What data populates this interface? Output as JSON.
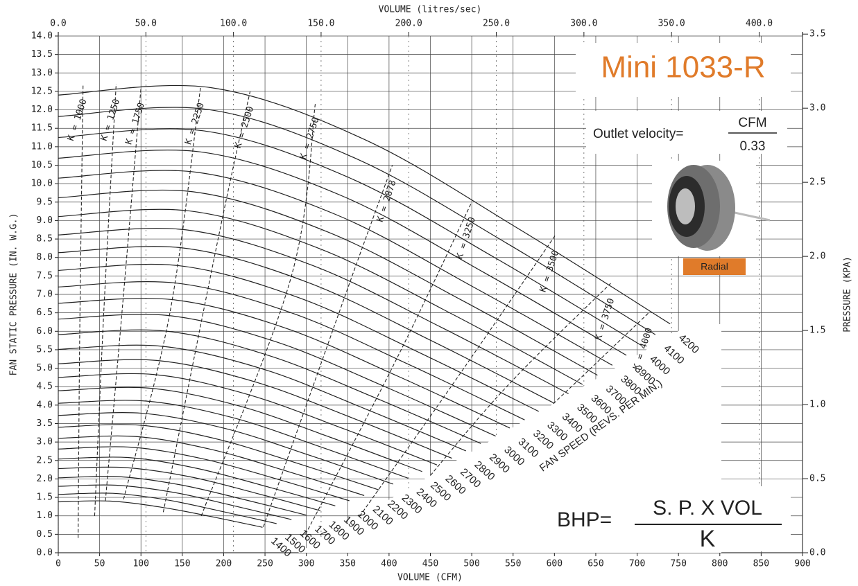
{
  "chart_data": {
    "type": "line",
    "title": "Mini 1033-R",
    "title_color": "#e07b2a",
    "xlabel": "VOLUME (CFM)",
    "x2label": "VOLUME (litres/sec)",
    "ylabel": "FAN STATIC PRESSURE (IN. W.G.)",
    "y2label": "PRESSURE (KPA)",
    "speed_label": "FAN SPEED (REVS. PER MIN.)",
    "line_color": "#222222",
    "grid": true,
    "xlim": [
      0,
      900
    ],
    "xticks": [
      0,
      50,
      100,
      150,
      200,
      250,
      300,
      350,
      400,
      450,
      500,
      550,
      600,
      650,
      700,
      750,
      800,
      850,
      900
    ],
    "x2lim": [
      0,
      424.75
    ],
    "x2ticks": [
      {
        "value": 0,
        "label": "0.0"
      },
      {
        "value": 50,
        "label": "50.0"
      },
      {
        "value": 100,
        "label": "100.0"
      },
      {
        "value": 150,
        "label": "150.0"
      },
      {
        "value": 200,
        "label": "200.0"
      },
      {
        "value": 250,
        "label": "250.0"
      },
      {
        "value": 300,
        "label": "300.0"
      },
      {
        "value": 350,
        "label": "350.0"
      },
      {
        "value": 400,
        "label": "400.0"
      }
    ],
    "ylim": [
      0,
      14
    ],
    "yticks": [
      {
        "value": 0,
        "label": "0.0"
      },
      {
        "value": 0.5,
        "label": "0.5"
      },
      {
        "value": 1,
        "label": "1.0"
      },
      {
        "value": 1.5,
        "label": "1.5"
      },
      {
        "value": 2,
        "label": "2.0"
      },
      {
        "value": 2.5,
        "label": "2.5"
      },
      {
        "value": 3,
        "label": "3.0"
      },
      {
        "value": 3.5,
        "label": "3.5"
      },
      {
        "value": 4,
        "label": "4.0"
      },
      {
        "value": 4.5,
        "label": "4.5"
      },
      {
        "value": 5,
        "label": "5.0"
      },
      {
        "value": 5.5,
        "label": "5.5"
      },
      {
        "value": 6,
        "label": "6.0"
      },
      {
        "value": 6.5,
        "label": "6.5"
      },
      {
        "value": 7,
        "label": "7.0"
      },
      {
        "value": 7.5,
        "label": "7.5"
      },
      {
        "value": 8,
        "label": "8.0"
      },
      {
        "value": 8.5,
        "label": "8.5"
      },
      {
        "value": 9,
        "label": "9.0"
      },
      {
        "value": 9.5,
        "label": "9.5"
      },
      {
        "value": 10,
        "label": "10.0"
      },
      {
        "value": 10.5,
        "label": "10.5"
      },
      {
        "value": 11,
        "label": "11.0"
      },
      {
        "value": 11.5,
        "label": "11.5"
      },
      {
        "value": 12,
        "label": "12.0"
      },
      {
        "value": 12.5,
        "label": "12.5"
      },
      {
        "value": 13,
        "label": "13.0"
      },
      {
        "value": 13.5,
        "label": "13.5"
      },
      {
        "value": 14,
        "label": "14.0"
      }
    ],
    "y2lim": [
      0,
      3.487
    ],
    "y2ticks": [
      {
        "value": 0,
        "label": "0.0"
      },
      {
        "value": 0.5,
        "label": "0.5"
      },
      {
        "value": 1,
        "label": "1.0"
      },
      {
        "value": 1.5,
        "label": "1.5"
      },
      {
        "value": 2,
        "label": "2.0"
      },
      {
        "value": 2.5,
        "label": "2.5"
      },
      {
        "value": 3,
        "label": "3.0"
      },
      {
        "value": 3.5,
        "label": "3.5"
      }
    ],
    "series": [
      {
        "name": "1400",
        "x": [
          0,
          62,
          123,
          185,
          247
        ],
        "values": [
          1.38,
          1.4,
          1.24,
          0.98,
          0.69
        ]
      },
      {
        "name": "1500",
        "x": [
          0,
          66,
          132,
          198,
          264
        ],
        "values": [
          1.58,
          1.61,
          1.43,
          1.12,
          0.79
        ]
      },
      {
        "name": "1600",
        "x": [
          0,
          70,
          141,
          211,
          282
        ],
        "values": [
          1.8,
          1.83,
          1.63,
          1.28,
          0.9
        ]
      },
      {
        "name": "1700",
        "x": [
          0,
          75,
          150,
          225,
          300
        ],
        "values": [
          2.03,
          2.06,
          1.83,
          1.44,
          1.02
        ]
      },
      {
        "name": "1800",
        "x": [
          0,
          79,
          159,
          238,
          317
        ],
        "values": [
          2.28,
          2.31,
          2.06,
          1.62,
          1.14
        ]
      },
      {
        "name": "1900",
        "x": [
          0,
          84,
          167,
          251,
          335
        ],
        "values": [
          2.54,
          2.58,
          2.29,
          1.8,
          1.27
        ]
      },
      {
        "name": "2000",
        "x": [
          0,
          88,
          176,
          264,
          352
        ],
        "values": [
          2.81,
          2.86,
          2.54,
          2.0,
          1.41
        ]
      },
      {
        "name": "2100",
        "x": [
          0,
          93,
          185,
          278,
          370
        ],
        "values": [
          3.1,
          3.15,
          2.8,
          2.2,
          1.55
        ]
      },
      {
        "name": "2200",
        "x": [
          0,
          97,
          194,
          291,
          388
        ],
        "values": [
          3.4,
          3.46,
          3.07,
          2.41,
          1.7
        ]
      },
      {
        "name": "2300",
        "x": [
          0,
          101,
          203,
          304,
          405
        ],
        "values": [
          3.72,
          3.78,
          3.36,
          2.64,
          1.86
        ]
      },
      {
        "name": "2400",
        "x": [
          0,
          106,
          211,
          317,
          423
        ],
        "values": [
          4.05,
          4.11,
          3.66,
          2.87,
          2.02
        ]
      },
      {
        "name": "2500",
        "x": [
          0,
          110,
          220,
          330,
          440
        ],
        "values": [
          4.39,
          4.46,
          3.97,
          3.12,
          2.2
        ]
      },
      {
        "name": "2600",
        "x": [
          0,
          115,
          229,
          344,
          458
        ],
        "values": [
          4.75,
          4.83,
          4.29,
          3.37,
          2.38
        ]
      },
      {
        "name": "2700",
        "x": [
          0,
          119,
          238,
          357,
          476
        ],
        "values": [
          5.12,
          5.21,
          4.63,
          3.64,
          2.56
        ]
      },
      {
        "name": "2800",
        "x": [
          0,
          123,
          247,
          370,
          493
        ],
        "values": [
          5.51,
          5.6,
          4.98,
          3.91,
          2.76
        ]
      },
      {
        "name": "2900",
        "x": [
          0,
          128,
          255,
          383,
          511
        ],
        "values": [
          5.91,
          6.01,
          5.34,
          4.2,
          2.96
        ]
      },
      {
        "name": "3000",
        "x": [
          0,
          132,
          264,
          396,
          529
        ],
        "values": [
          6.33,
          6.43,
          5.71,
          4.49,
          3.16
        ]
      },
      {
        "name": "3100",
        "x": [
          0,
          137,
          273,
          410,
          546
        ],
        "values": [
          6.76,
          6.86,
          6.1,
          4.79,
          3.38
        ]
      },
      {
        "name": "3200",
        "x": [
          0,
          141,
          282,
          423,
          564
        ],
        "values": [
          7.2,
          7.31,
          6.5,
          5.11,
          3.6
        ]
      },
      {
        "name": "3300",
        "x": [
          0,
          145,
          291,
          436,
          581
        ],
        "values": [
          7.65,
          7.78,
          6.91,
          5.43,
          3.83
        ]
      },
      {
        "name": "3400",
        "x": [
          0,
          150,
          300,
          449,
          599
        ],
        "values": [
          8.13,
          8.26,
          7.34,
          5.77,
          4.06
        ]
      },
      {
        "name": "3500",
        "x": [
          0,
          154,
          308,
          463,
          617
        ],
        "values": [
          8.61,
          8.75,
          7.78,
          6.11,
          4.31
        ]
      },
      {
        "name": "3600",
        "x": [
          0,
          159,
          317,
          476,
          634
        ],
        "values": [
          9.11,
          9.26,
          8.23,
          6.47,
          4.56
        ]
      },
      {
        "name": "3700",
        "x": [
          0,
          163,
          326,
          489,
          652
        ],
        "values": [
          9.62,
          9.78,
          8.69,
          6.83,
          4.81
        ]
      },
      {
        "name": "3800",
        "x": [
          0,
          167,
          335,
          502,
          670
        ],
        "values": [
          10.15,
          10.31,
          9.17,
          7.2,
          5.08
        ]
      },
      {
        "name": "3900",
        "x": [
          0,
          172,
          344,
          515,
          687
        ],
        "values": [
          10.69,
          10.86,
          9.66,
          7.59,
          5.35
        ]
      },
      {
        "name": "4000",
        "x": [
          0,
          176,
          352,
          529,
          705
        ],
        "values": [
          11.25,
          11.43,
          10.16,
          7.98,
          5.62
        ]
      },
      {
        "name": "4100",
        "x": [
          0,
          181,
          361,
          542,
          722
        ],
        "values": [
          11.82,
          12.01,
          10.67,
          8.39,
          5.91
        ]
      },
      {
        "name": "4200",
        "x": [
          0,
          185,
          370,
          555,
          740
        ],
        "values": [
          12.4,
          12.6,
          11.2,
          8.8,
          6.2
        ]
      }
    ],
    "system_curves": [
      {
        "name": "K = 1000",
        "x": [
          24,
          26,
          30
        ],
        "values": [
          0.4,
          6.0,
          12.7
        ]
      },
      {
        "name": "K = 1250",
        "x": [
          44,
          55,
          70
        ],
        "values": [
          1.0,
          6.5,
          12.7
        ]
      },
      {
        "name": "K = 1750",
        "x": [
          57,
          77,
          100
        ],
        "values": [
          1.4,
          6.5,
          12.6
        ]
      },
      {
        "name": "K = 2250",
        "x": [
          79,
          135,
          172
        ],
        "values": [
          1.45,
          6.5,
          12.6
        ]
      },
      {
        "name": "K = 2500",
        "x": [
          127,
          196,
          232
        ],
        "values": [
          1.1,
          8.8,
          12.5
        ]
      },
      {
        "name": "K = 2750",
        "x": [
          173,
          282,
          311
        ],
        "values": [
          1.0,
          7.5,
          12.2
        ]
      },
      {
        "name": "K = 2878",
        "x": [
          248,
          349,
          404
        ],
        "values": [
          0.7,
          7.1,
          10.5
        ]
      },
      {
        "name": "K = 3250",
        "x": [
          299,
          408,
          500
        ],
        "values": [
          0.5,
          5.2,
          9.5
        ]
      },
      {
        "name": "K = 3500",
        "x": [
          349,
          475,
          601
        ],
        "values": [
          0.5,
          4.5,
          8.6
        ]
      },
      {
        "name": "K = 3750",
        "x": [
          399,
          534,
          668
        ],
        "values": [
          0.7,
          4.3,
          7.3
        ]
      },
      {
        "name": "K = 4000",
        "x": [
          450,
          592,
          714
        ],
        "values": [
          1.0,
          3.9,
          6.5
        ]
      }
    ],
    "annotations": {
      "outlet_velocity": "Outlet velocity=",
      "outlet_numerator": "CFM",
      "outlet_denominator": "0.33",
      "badge": "Radial",
      "badge_color": "#e07b2a",
      "bhp": "BHP=",
      "bhp_numerator": "S. P. X VOL",
      "bhp_denominator": "K"
    }
  }
}
